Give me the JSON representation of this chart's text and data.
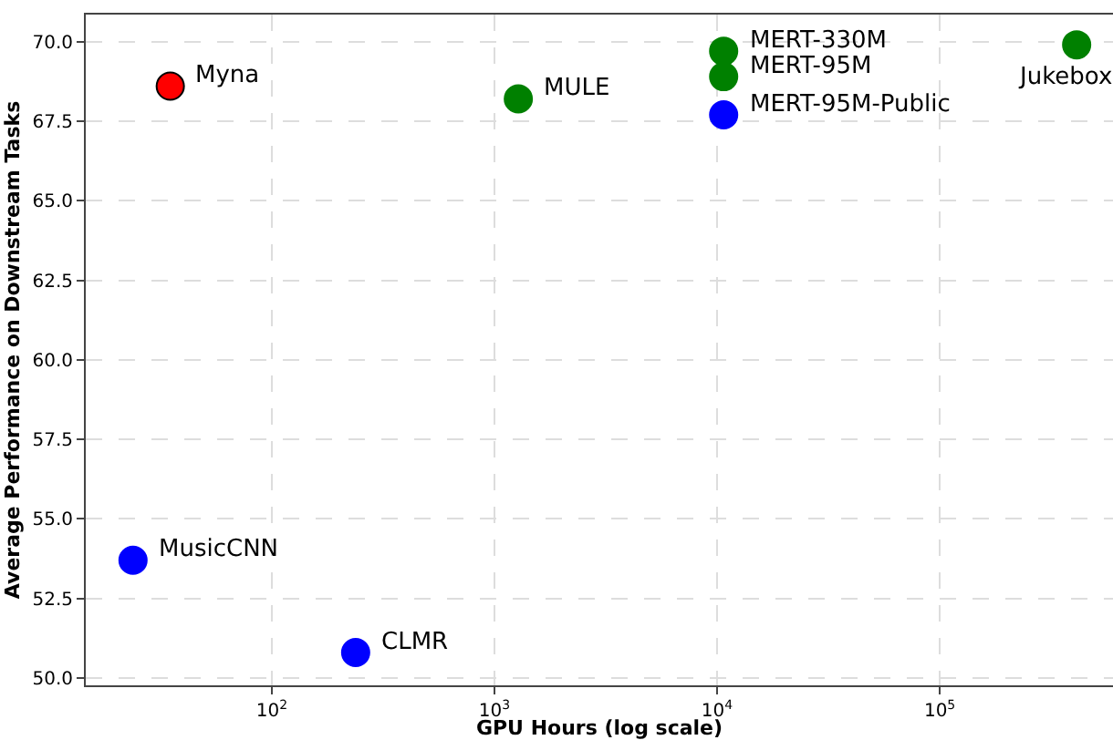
{
  "chart_data": {
    "type": "scatter",
    "xlabel": "GPU Hours (log scale)",
    "ylabel": "Average Performance on Downstream Tasks",
    "series": [
      {
        "color": "#ff0000",
        "x": [
          35
        ],
        "values": [
          68.6
        ]
      },
      {
        "color": "#008000",
        "x": [
          1280,
          10700,
          10700,
          412000
        ],
        "values": [
          68.2,
          69.7,
          68.9,
          69.9
        ]
      },
      {
        "color": "#0000ff",
        "x": [
          10700,
          23.8,
          238
        ],
        "values": [
          67.7,
          53.7,
          50.8
        ]
      }
    ],
    "annotations": [
      {
        "text": "Myna",
        "x": 35,
        "y": 68.6
      },
      {
        "text": "MULE",
        "x": 1280,
        "y": 68.2
      },
      {
        "text": "MERT-330M",
        "x": 10700,
        "y": 69.7
      },
      {
        "text": "MERT-95M",
        "x": 10700,
        "y": 68.9
      },
      {
        "text": "MERT-95M-Public",
        "x": 10700,
        "y": 67.7
      },
      {
        "text": "Jukebox",
        "x": 412000,
        "y": 69.9
      },
      {
        "text": "MusicCNN",
        "x": 23.8,
        "y": 53.7
      },
      {
        "text": "CLMR",
        "x": 238,
        "y": 50.8
      }
    ],
    "log": "x",
    "grid": true,
    "marker": "circle",
    "xlim": [
      14.6,
      600000
    ],
    "ylim": [
      49.77,
      70.85
    ],
    "xticks": [
      {
        "value": 100,
        "label": "10$^{2}$"
      },
      {
        "value": 1000,
        "label": "10$^{3}$"
      },
      {
        "value": 10000,
        "label": "10$^{4}$"
      },
      {
        "value": 100000,
        "label": "10$^{5}$"
      }
    ],
    "yticks": [
      {
        "value": 50,
        "label": "50.0"
      },
      {
        "value": 52.5,
        "label": "52.5"
      },
      {
        "value": 55,
        "label": "55.0"
      },
      {
        "value": 57.5,
        "label": "57.5"
      },
      {
        "value": 60,
        "label": "60.0"
      },
      {
        "value": 62.5,
        "label": "62.5"
      },
      {
        "value": 65,
        "label": "65.0"
      },
      {
        "value": 67.5,
        "label": "67.5"
      },
      {
        "value": 70,
        "label": "70.0"
      }
    ]
  }
}
